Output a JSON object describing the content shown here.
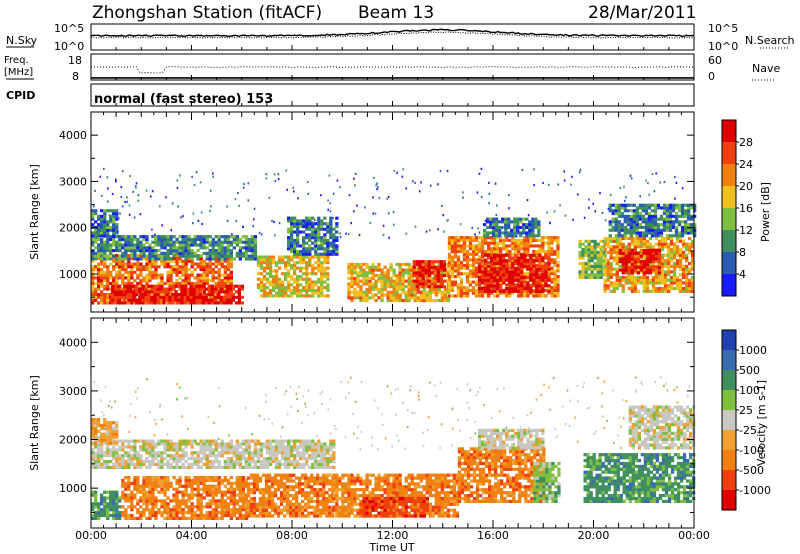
{
  "header": {
    "station": "Zhongshan Station (fitACF)",
    "beam": "Beam 13",
    "date": "28/Mar/2011"
  },
  "strips": {
    "nsky_label": "N.Sky",
    "nsearch_label": "N.Search",
    "nsky_ticks": [
      "10^5",
      "10^0"
    ],
    "nsearch_ticks": [
      "10^5",
      "10^0"
    ],
    "freq_label_1": "Freq.",
    "freq_label_2": "[MHz]",
    "freq_ticks": [
      "18",
      "8"
    ],
    "nave_label": "Nave",
    "nave_ticks": [
      "60",
      "0"
    ],
    "cpid_label": "CPID",
    "cpid_text": "normal (fast stereo) 153"
  },
  "colors": {
    "power_scale": [
      "#1a1aff",
      "#2a5db0",
      "#3f8f5f",
      "#7fbf3f",
      "#f0c020",
      "#f08010",
      "#f04010",
      "#e00000"
    ],
    "velocity_scale": [
      "#2040b0",
      "#3a6ab0",
      "#3f8f5f",
      "#7fc040",
      "#c8c8c0",
      "#f0a030",
      "#f08010",
      "#f04010",
      "#e00000"
    ]
  },
  "chart_data": [
    {
      "type": "heatmap",
      "name": "power",
      "ylabel": "Slant Range [km]",
      "xlabel": "",
      "xlim": [
        0,
        24
      ],
      "ylim": [
        180,
        4500
      ],
      "yticks": [
        1000,
        2000,
        3000,
        4000
      ],
      "colorbar": {
        "label": "Power [dB]",
        "range": [
          0,
          32
        ],
        "ticks": [
          4,
          8,
          12,
          16,
          20,
          24,
          28
        ]
      },
      "echo_regions": [
        {
          "t0": 0.0,
          "t1": 5.6,
          "r0": 350,
          "r1": 1400,
          "level": 24
        },
        {
          "t0": 0.8,
          "t1": 6.0,
          "r0": 350,
          "r1": 750,
          "level": 30
        },
        {
          "t0": 0.0,
          "t1": 6.6,
          "r0": 1300,
          "r1": 1800,
          "level": 9
        },
        {
          "t0": 0.0,
          "t1": 1.0,
          "r0": 1800,
          "r1": 2400,
          "level": 7
        },
        {
          "t0": 6.6,
          "t1": 9.4,
          "r0": 500,
          "r1": 1400,
          "level": 18
        },
        {
          "t0": 7.8,
          "t1": 9.8,
          "r0": 1400,
          "r1": 2200,
          "level": 7
        },
        {
          "t0": 10.2,
          "t1": 14.2,
          "r0": 400,
          "r1": 1200,
          "level": 19
        },
        {
          "t0": 12.8,
          "t1": 14.0,
          "r0": 700,
          "r1": 1300,
          "level": 28
        },
        {
          "t0": 14.2,
          "t1": 18.6,
          "r0": 500,
          "r1": 1800,
          "level": 22
        },
        {
          "t0": 15.4,
          "t1": 18.2,
          "r0": 600,
          "r1": 1400,
          "level": 30
        },
        {
          "t0": 15.6,
          "t1": 17.8,
          "r0": 1800,
          "r1": 2200,
          "level": 8
        },
        {
          "t0": 19.4,
          "t1": 20.4,
          "r0": 900,
          "r1": 1700,
          "level": 14
        },
        {
          "t0": 20.4,
          "t1": 24.0,
          "r0": 600,
          "r1": 1800,
          "level": 20
        },
        {
          "t0": 21.0,
          "t1": 22.6,
          "r0": 1000,
          "r1": 1500,
          "level": 29
        },
        {
          "t0": 20.6,
          "t1": 24.0,
          "r0": 1800,
          "r1": 2500,
          "level": 8
        }
      ]
    },
    {
      "type": "heatmap",
      "name": "velocity",
      "ylabel": "Slant Range [km]",
      "xlabel": "Time UT",
      "xlim": [
        0,
        24
      ],
      "ylim": [
        180,
        4500
      ],
      "yticks": [
        1000,
        2000,
        3000,
        4000
      ],
      "xticks": [
        "00:00",
        "04:00",
        "08:00",
        "12:00",
        "16:00",
        "20:00",
        "00:00"
      ],
      "colorbar": {
        "label": "Velocity [m s-1]",
        "tick_labels": [
          "1000",
          "500",
          "100",
          "25",
          "-25",
          "-100",
          "-500",
          "-1000"
        ]
      },
      "echo_regions": [
        {
          "t0": 0.0,
          "t1": 1.2,
          "r0": 350,
          "r1": 900,
          "bin": 2
        },
        {
          "t0": 1.2,
          "t1": 6.2,
          "r0": 350,
          "r1": 1200,
          "bin": 6
        },
        {
          "t0": 0.0,
          "t1": 9.6,
          "r0": 1400,
          "r1": 2000,
          "bin": 4
        },
        {
          "t0": 0.0,
          "t1": 1.0,
          "r0": 1900,
          "r1": 2400,
          "bin": 5
        },
        {
          "t0": 6.2,
          "t1": 9.6,
          "r0": 400,
          "r1": 1300,
          "bin": 6
        },
        {
          "t0": 9.6,
          "t1": 14.6,
          "r0": 400,
          "r1": 1300,
          "bin": 6
        },
        {
          "t0": 10.8,
          "t1": 13.4,
          "r0": 400,
          "r1": 800,
          "bin": 7
        },
        {
          "t0": 14.6,
          "t1": 18.0,
          "r0": 700,
          "r1": 1800,
          "bin": 6
        },
        {
          "t0": 17.6,
          "t1": 18.6,
          "r0": 700,
          "r1": 1500,
          "bin": 3
        },
        {
          "t0": 15.4,
          "t1": 18.0,
          "r0": 1800,
          "r1": 2200,
          "bin": 4
        },
        {
          "t0": 19.6,
          "t1": 24.0,
          "r0": 700,
          "r1": 1700,
          "bin": 2
        },
        {
          "t0": 21.4,
          "t1": 24.0,
          "r0": 1800,
          "r1": 2700,
          "bin": 4
        }
      ]
    }
  ]
}
